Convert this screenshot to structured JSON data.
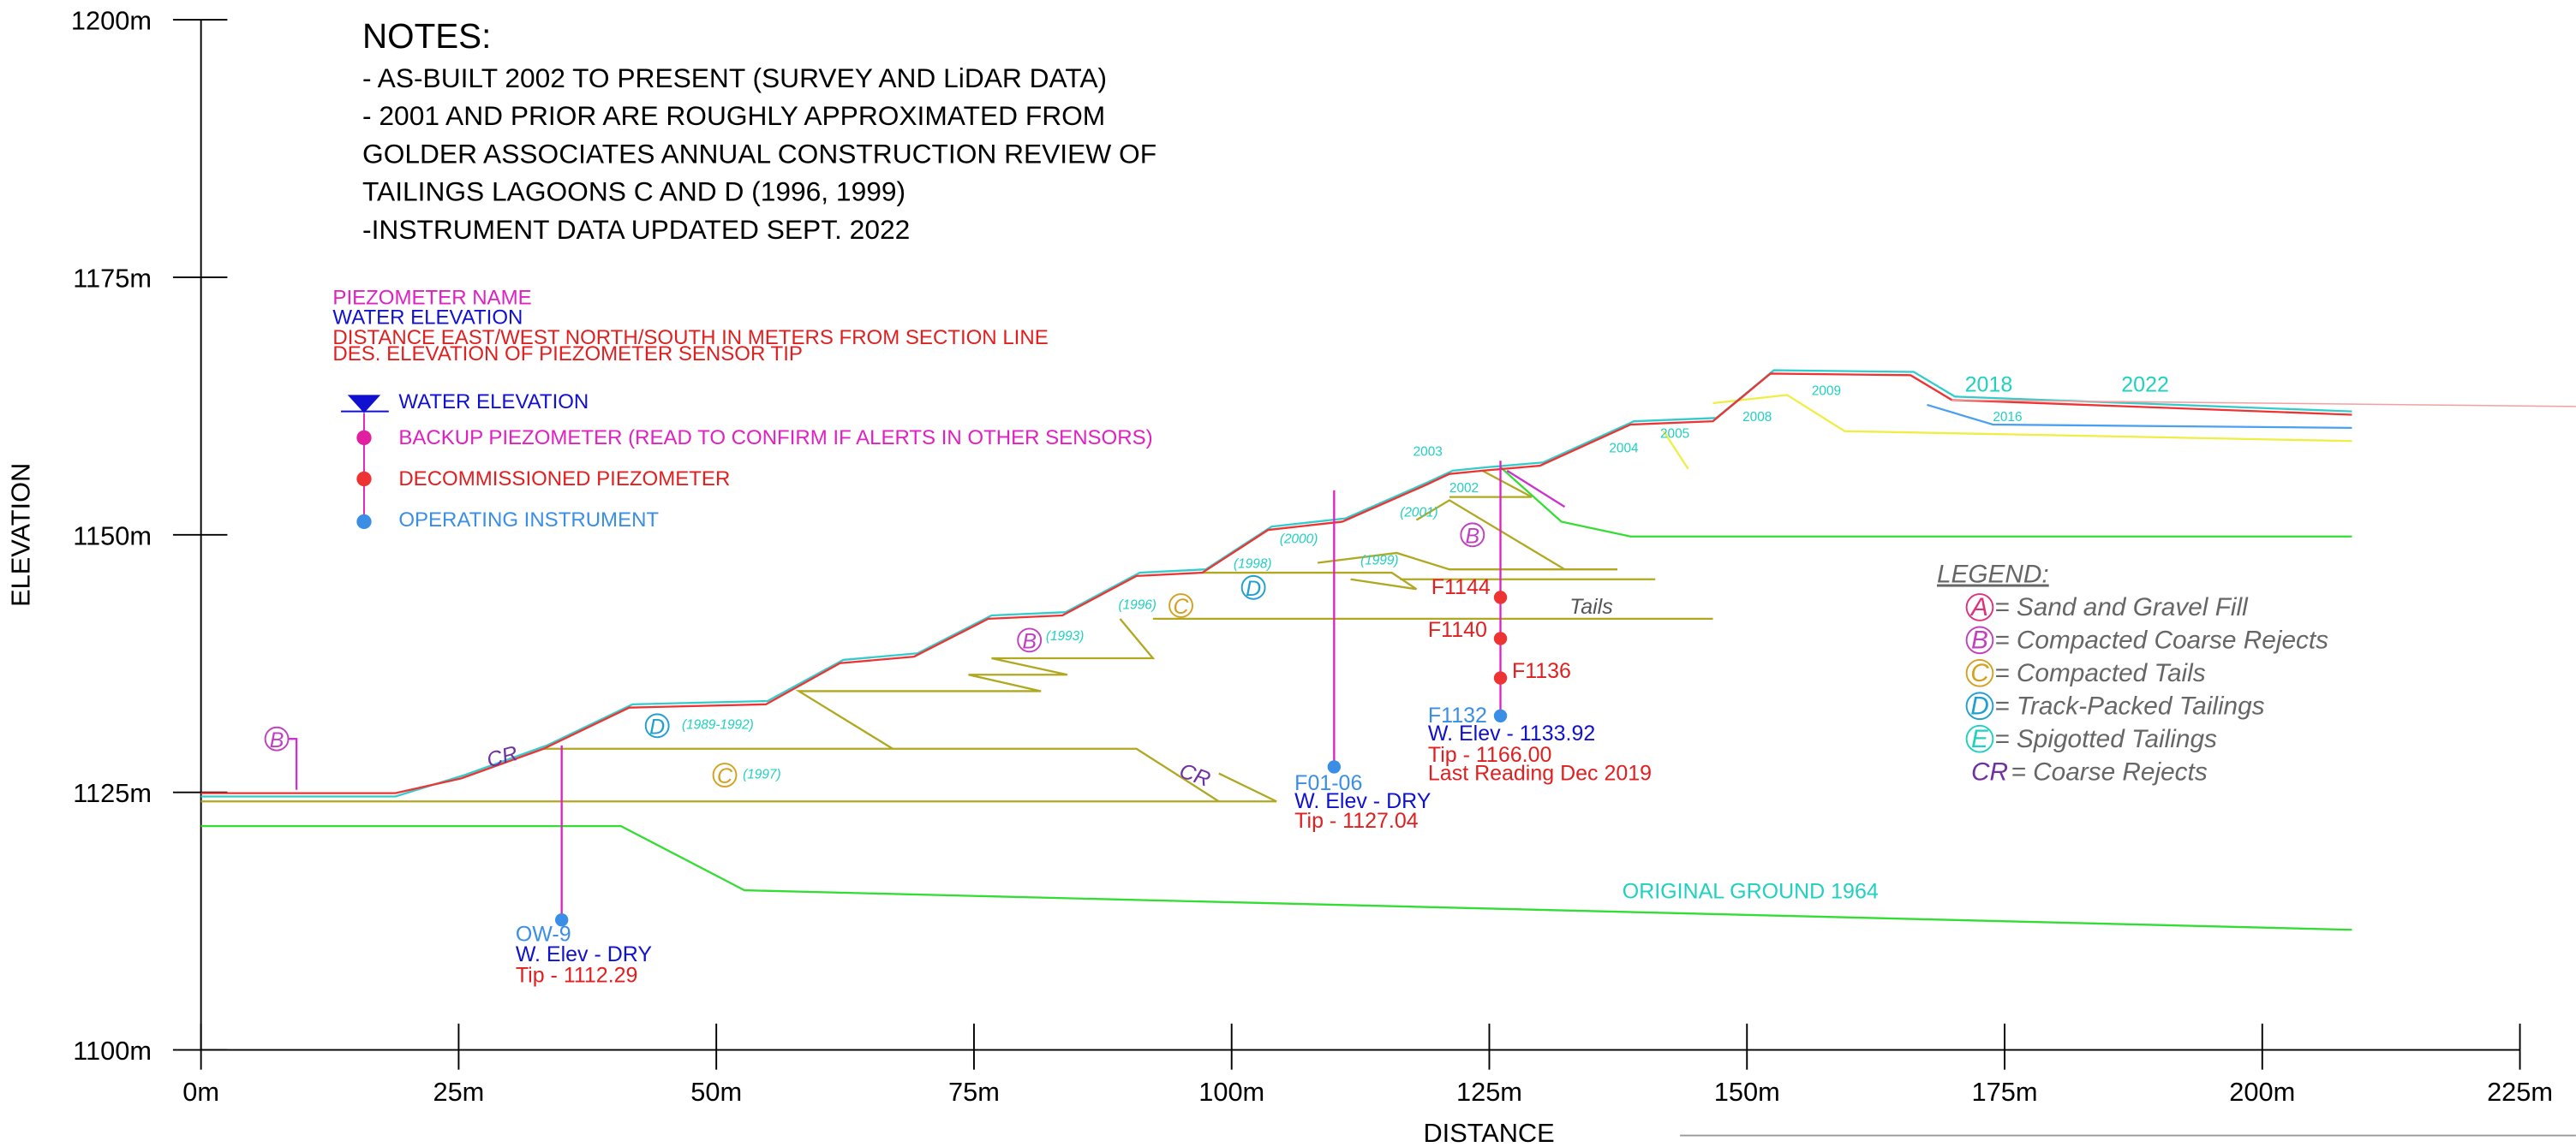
{
  "axes": {
    "x_title": "DISTANCE",
    "y_title": "ELEVATION",
    "xlim": [
      0,
      225
    ],
    "ylim": [
      1100,
      1200
    ],
    "xticks": [
      {
        "value": 0,
        "label": "0m"
      },
      {
        "value": 25,
        "label": "25m"
      },
      {
        "value": 50,
        "label": "50m"
      },
      {
        "value": 75,
        "label": "75m"
      },
      {
        "value": 100,
        "label": "100m"
      },
      {
        "value": 125,
        "label": "125m"
      },
      {
        "value": 150,
        "label": "150m"
      },
      {
        "value": 175,
        "label": "175m"
      },
      {
        "value": 200,
        "label": "200m"
      },
      {
        "value": 225,
        "label": "225m"
      }
    ],
    "yticks": [
      {
        "value": 1100,
        "label": "1100m"
      },
      {
        "value": 1125,
        "label": "1125m"
      },
      {
        "value": 1150,
        "label": "1150m"
      },
      {
        "value": 1175,
        "label": "1175m"
      },
      {
        "value": 1200,
        "label": "1200m"
      }
    ]
  },
  "notes": {
    "title": "NOTES:",
    "lines": [
      "- AS-BUILT 2002 TO PRESENT (SURVEY AND LiDAR DATA)",
      "- 2001 AND PRIOR ARE ROUGHLY APPROXIMATED FROM",
      "GOLDER ASSOCIATES ANNUAL CONSTRUCTION REVIEW OF",
      "TAILINGS LAGOONS C AND D (1996, 1999)",
      "-INSTRUMENT DATA UPDATED SEPT. 2022"
    ]
  },
  "key": {
    "header": [
      "PIEZOMETER NAME",
      "WATER ELEVATION",
      "DISTANCE EAST/WEST NORTH/SOUTH IN METERS FROM SECTION LINE",
      "DES. ELEVATION OF PIEZOMETER SENSOR TIP"
    ],
    "items": [
      "WATER ELEVATION",
      "BACKUP PIEZOMETER (READ TO CONFIRM IF ALERTS IN OTHER SENSORS)",
      "DECOMMISSIONED PIEZOMETER",
      "OPERATING INSTRUMENT"
    ]
  },
  "legend": {
    "title": "LEGEND:",
    "items": [
      {
        "symbol": "A",
        "text": "= Sand and Gravel Fill"
      },
      {
        "symbol": "B",
        "text": "= Compacted Coarse Rejects"
      },
      {
        "symbol": "C",
        "text": "= Compacted Tails"
      },
      {
        "symbol": "D",
        "text": "= Track-Packed Tailings"
      },
      {
        "symbol": "E",
        "text": "= Spigotted Tailings"
      },
      {
        "symbol": "CR",
        "text": "= Coarse Rejects"
      }
    ]
  },
  "instruments": [
    {
      "name": "OW-9",
      "water": "W. Elev - DRY",
      "tip": "Tip - 1112.29"
    },
    {
      "name": "F01-06",
      "water": "W. Elev - DRY",
      "tip": "Tip - 1127.04"
    },
    {
      "name": "F1132",
      "water": "W. Elev - 1133.92",
      "tip": "Tip - 1166.00",
      "note": "Last Reading Dec 2019"
    },
    {
      "name": "F1144"
    },
    {
      "name": "F1140"
    },
    {
      "name": "F1136"
    }
  ],
  "year_labels": [
    "2018",
    "2022",
    "2016",
    "2009",
    "2008",
    "2005",
    "2004",
    "2003",
    "2002",
    "(2001)",
    "(2000)",
    "(1999)",
    "(1998)",
    "(1996)",
    "(1993)",
    "(1989-1992)",
    "(1997)"
  ],
  "zone_labels": [
    "B",
    "D",
    "C",
    "B",
    "D",
    "C",
    "CR",
    "CR",
    "B"
  ],
  "tails_label": "Tails",
  "ground_label": "ORIGINAL GROUND 1964"
}
